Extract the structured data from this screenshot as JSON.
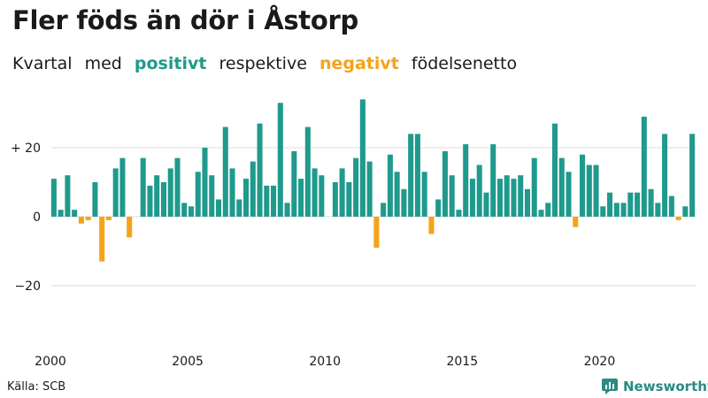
{
  "title": "Fler föds än dör i Åstorp",
  "subtitle": {
    "w1": "Kvartal",
    "w2": "med",
    "positive": "positivt",
    "w3": "respektive",
    "negative": "negativt",
    "w4": "födelsenetto"
  },
  "colors": {
    "positive": "#1f9a8c",
    "negative": "#f5a31a",
    "grid": "#dddddd",
    "text": "#1a1a1a",
    "brand": "#2a8a84"
  },
  "source": "Källa: SCB",
  "brand_name": "Newsworthy",
  "chart_data": {
    "type": "bar",
    "y_ticks": [
      {
        "value": 20,
        "label": "+ 20"
      },
      {
        "value": 0,
        "label": "0"
      },
      {
        "value": -20,
        "label": "−20"
      }
    ],
    "x_ticks": [
      "2000",
      "2005",
      "2010",
      "2015",
      "2020"
    ],
    "ylim": [
      -40,
      35
    ],
    "start_year": 2000,
    "values": [
      11,
      2,
      12,
      2,
      -2,
      -1,
      10,
      -13,
      -1,
      14,
      17,
      -6,
      null,
      17,
      9,
      12,
      10,
      14,
      17,
      4,
      3,
      13,
      20,
      12,
      5,
      26,
      14,
      5,
      11,
      16,
      27,
      9,
      9,
      33,
      4,
      19,
      11,
      26,
      14,
      12,
      null,
      10,
      14,
      10,
      17,
      34,
      16,
      -9,
      4,
      18,
      13,
      8,
      24,
      24,
      13,
      -5,
      5,
      19,
      12,
      2,
      21,
      11,
      15,
      7,
      21,
      11,
      12,
      11,
      12,
      8,
      17,
      2,
      4,
      27,
      17,
      13,
      -3,
      18,
      15,
      15,
      3,
      7,
      4,
      4,
      7,
      7,
      29,
      8,
      4,
      24,
      6,
      -1,
      3,
      24
    ]
  }
}
